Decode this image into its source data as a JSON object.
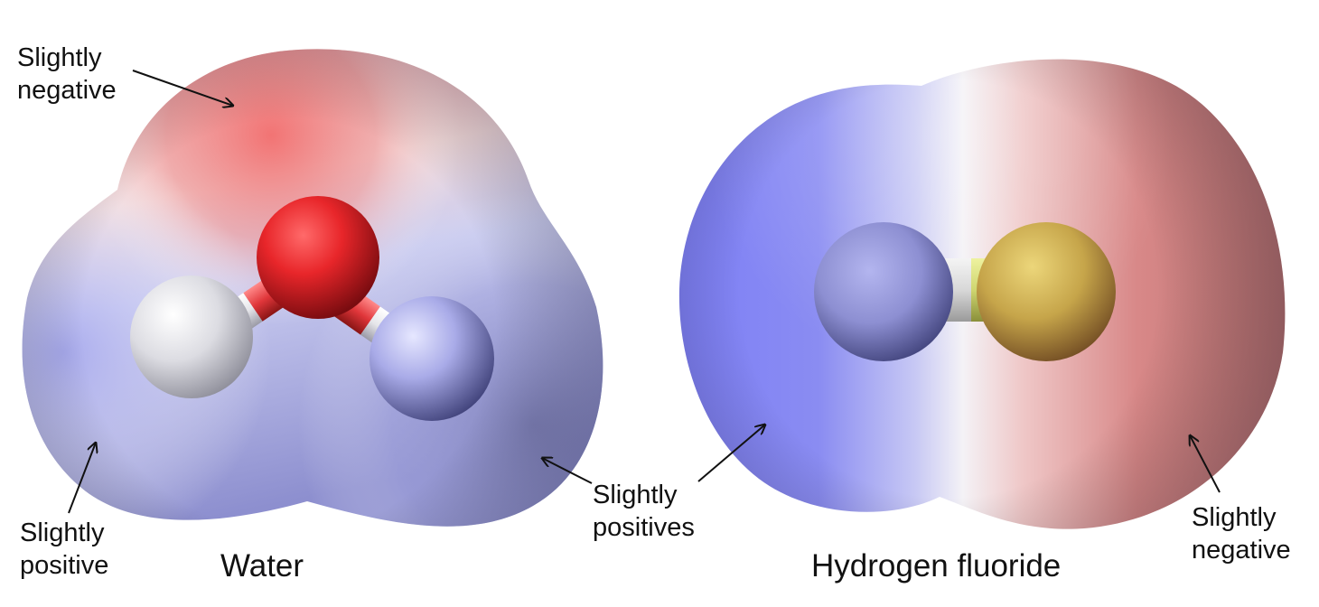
{
  "water": {
    "name": "Water",
    "top_label": [
      "Slightly",
      "negative"
    ],
    "left_label": [
      "Slightly",
      "positive"
    ],
    "right_label": [
      "Slightly",
      "positives"
    ]
  },
  "hf": {
    "name": "Hydrogen fluoride",
    "right_label": [
      "Slightly",
      "negative"
    ]
  },
  "colors": {
    "negative_surface": "#f07a7a",
    "positive_surface": "#8a8cf2",
    "oxygen_atom": "#e8262a",
    "hydrogen_atom": "#d9d9e0",
    "fluorine_atom": "#d6bf5a"
  }
}
